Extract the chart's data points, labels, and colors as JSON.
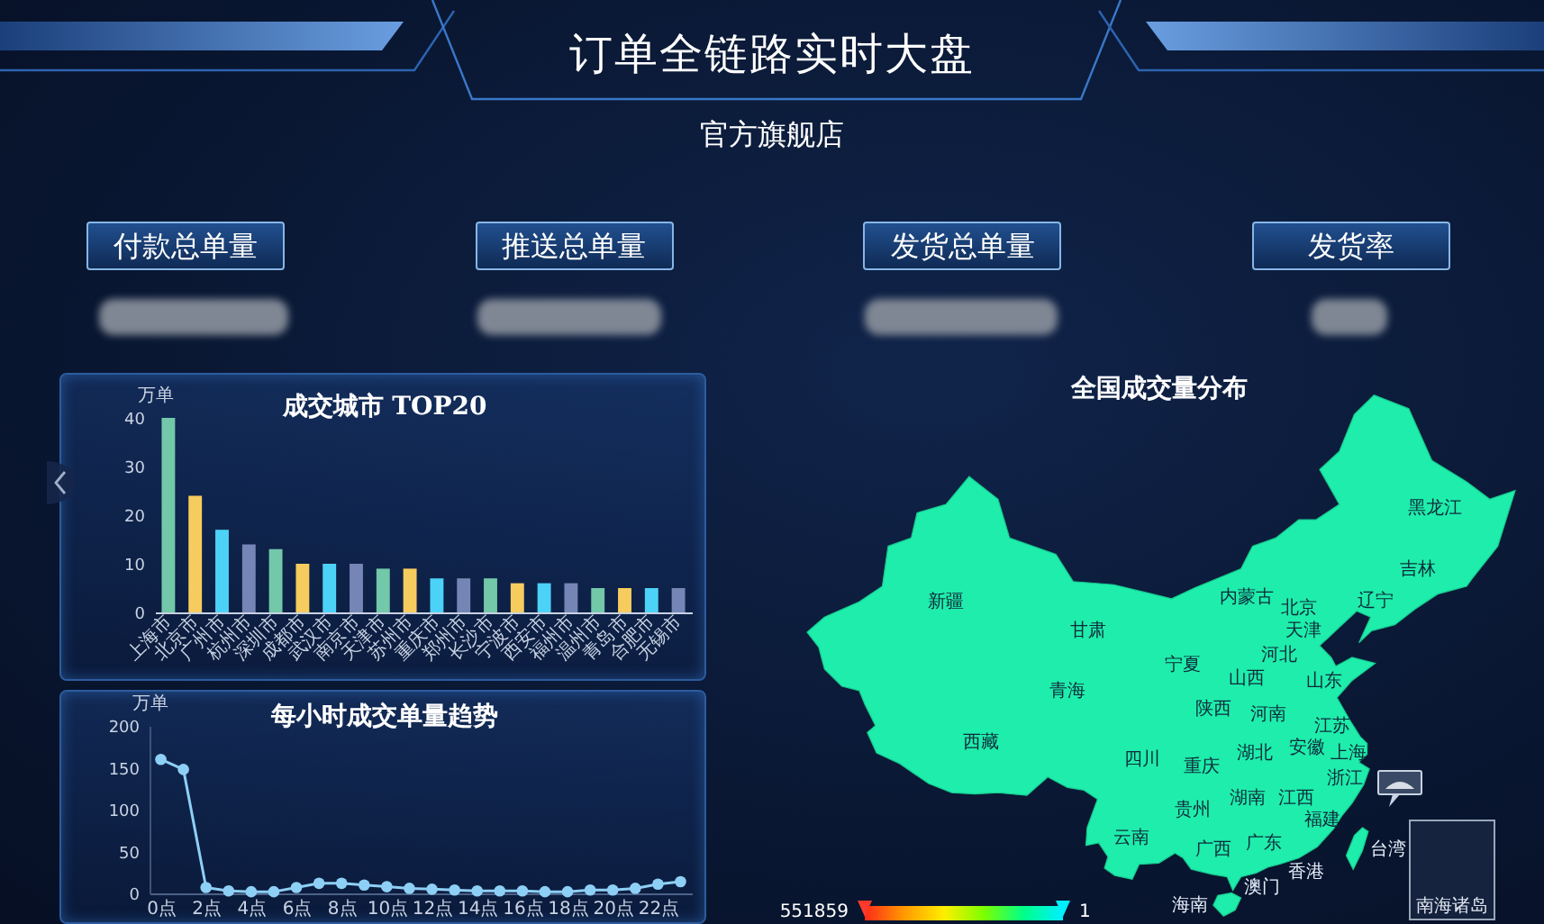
{
  "chart_data": [
    {
      "type": "other",
      "title": "订单全链路实时大盘",
      "subtitle": "官方旗舰店",
      "annotations": [
        "付款总单量",
        "推送总单量",
        "发货总单量",
        "发货率"
      ]
    },
    {
      "type": "bar",
      "title": "成交城市 TOP20",
      "ylabel": "万单",
      "categories": [
        "上海市",
        "北京市",
        "广州市",
        "杭州市",
        "深圳市",
        "成都市",
        "武汉市",
        "南京市",
        "天津市",
        "苏州市",
        "重庆市",
        "郑州市",
        "长沙市",
        "宁波市",
        "西安市",
        "福州市",
        "温州市",
        "青岛市",
        "合肥市",
        "无锡市"
      ],
      "values": [
        40,
        24,
        17,
        14,
        13,
        10,
        10,
        10,
        9,
        9,
        7,
        7,
        7,
        6,
        6,
        6,
        5,
        5,
        5,
        5
      ],
      "colors": [
        "#72c8a8",
        "#f7cc5e",
        "#4dd2f7",
        "#7585b5",
        "#72c8a8",
        "#f7cc5e",
        "#4dd2f7",
        "#7585b5",
        "#72c8a8",
        "#f7cc5e",
        "#4dd2f7",
        "#7585b5",
        "#72c8a8",
        "#f7cc5e",
        "#4dd2f7",
        "#7585b5",
        "#72c8a8",
        "#f7cc5e",
        "#4dd2f7",
        "#7585b5"
      ],
      "ylim": [
        0,
        40
      ],
      "yticks": [
        0,
        10,
        20,
        30,
        40
      ]
    },
    {
      "type": "line",
      "title": "每小时成交单量趋势",
      "ylabel": "万单",
      "categories": [
        "0点",
        null,
        "2点",
        null,
        "4点",
        null,
        "6点",
        null,
        "8点",
        null,
        "10点",
        null,
        "12点",
        null,
        "14点",
        null,
        "16点",
        null,
        "18点",
        null,
        "20点",
        null,
        "22点",
        null
      ],
      "values": [
        160,
        148,
        7,
        3,
        2,
        2,
        7,
        12,
        12,
        10,
        8,
        6,
        5,
        4,
        3,
        3,
        3,
        2,
        2,
        4,
        4,
        6,
        11,
        14
      ],
      "color": "#8ecff5",
      "marker": "circle",
      "ylim": [
        0,
        200
      ],
      "yticks": [
        0,
        50,
        100,
        150,
        200
      ]
    },
    {
      "type": "other",
      "title": "全国成交量分布",
      "categories": [
        "新疆",
        "西藏",
        "青海",
        "甘肃",
        "内蒙古",
        "黑龙江",
        "吉林",
        "辽宁",
        "北京",
        "天津",
        "河北",
        "山西",
        "宁夏",
        "陕西",
        "山东",
        "河南",
        "江苏",
        "安徽",
        "上海",
        "湖北",
        "四川",
        "重庆",
        "浙江",
        "贵州",
        "湖南",
        "江西",
        "云南",
        "福建",
        "广西",
        "广东",
        "台湾",
        "香港",
        "澳门",
        "海南"
      ],
      "annotations": [
        "551859",
        "1",
        "南海诸岛"
      ]
    }
  ]
}
